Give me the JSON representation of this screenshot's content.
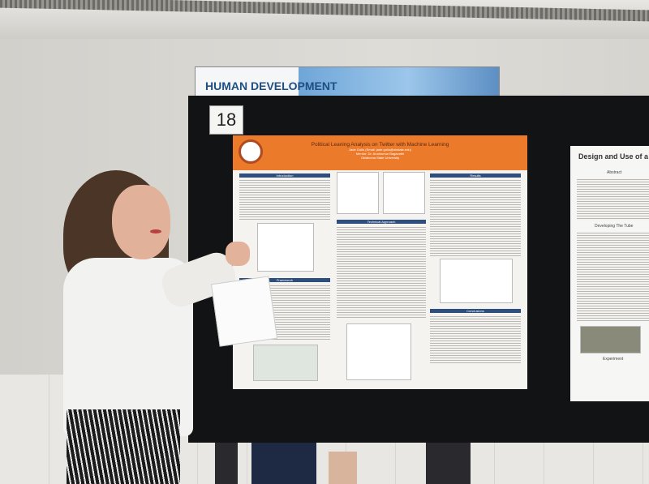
{
  "scene": {
    "description_tag": "poster-session"
  },
  "sign": {
    "text": "HUMAN DEVELOPMENT"
  },
  "board": {
    "number": "18"
  },
  "poster": {
    "title": "Political Leaning Analysis on Twitter with Machine Learning",
    "author": "Jade Gullo (Email: jade.gullo@okstate.edu)",
    "mentor": "Mentor: Dr. Arunkumar Bagavathi",
    "institution": "Oklahoma State University",
    "sections": [
      "Introduction",
      "Technical Approach",
      "Results",
      "Conclusions",
      "Framework"
    ]
  },
  "poster2": {
    "title": "Design and Use of a",
    "abstract": "Abstract",
    "developing": "Developing The Tube",
    "experiment": "Experiment"
  },
  "colors": {
    "poster_header": "#ec7a2b",
    "section_bar": "#2e4e7e",
    "board": "#121314"
  }
}
